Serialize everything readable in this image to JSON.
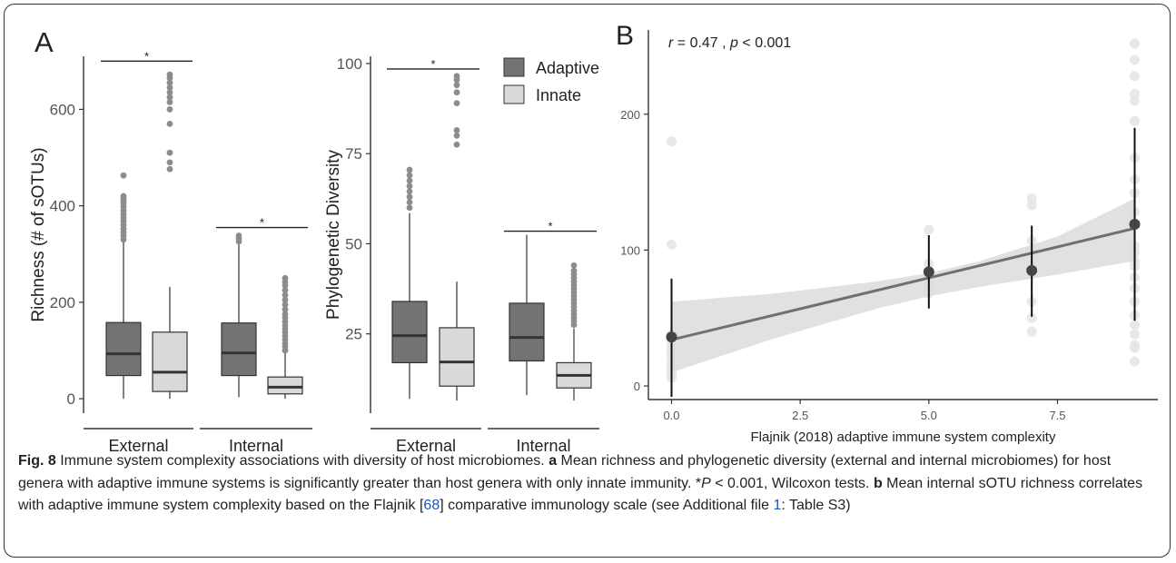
{
  "panels": {
    "a_letter": "A",
    "b_letter": "B"
  },
  "legend": {
    "adaptive": "Adaptive",
    "innate": "Innate"
  },
  "colors": {
    "adaptive": "#737373",
    "innate": "#d9d9d9",
    "outlier": "#8c8c8c",
    "regression_line": "#707070",
    "ci_band": "#dcdcdc",
    "bg_points": "#e6e6e6",
    "mean_points": "#444444"
  },
  "caption": {
    "fig_label": "Fig. 8",
    "title": " Immune system complexity associations with diversity of host microbiomes.",
    "a_label": "a",
    "a_text": " Mean richness and phylogenetic diversity (external and internal microbiomes) for host genera with adaptive immune systems is significantly greater than host genera with only innate immunity. *",
    "p_symbol": "P",
    "a_text2": " < 0.001, Wilcoxon tests.",
    "b_label": "b",
    "b_text1": " Mean internal sOTU richness correlates with adaptive immune system complexity based on the Flajnik [",
    "ref68": "68",
    "b_text2": "] comparative immunology scale (see Additional file ",
    "ref1": "1",
    "b_text3": ": Table S3)"
  },
  "chart_data": [
    {
      "type": "box",
      "id": "richness",
      "ylabel": "Richness (# of sOTUs)",
      "ylim": [
        -30,
        710
      ],
      "yticks": [
        0,
        200,
        400,
        600
      ],
      "facets": [
        "External",
        "Internal"
      ],
      "groups": [
        "Adaptive",
        "Innate"
      ],
      "boxes": [
        {
          "facet": "External",
          "group": "Adaptive",
          "whisker_low": 0,
          "q1": 48,
          "median": 93,
          "q3": 158,
          "whisker_high": 325,
          "outliers": [
            330,
            338,
            345,
            352,
            360,
            368,
            375,
            382,
            390,
            398,
            405,
            410,
            415,
            420,
            463
          ]
        },
        {
          "facet": "External",
          "group": "Innate",
          "whisker_low": 0,
          "q1": 15,
          "median": 55,
          "q3": 138,
          "whisker_high": 232,
          "outliers": [
            476,
            490,
            510,
            570,
            600,
            615,
            625,
            635,
            645,
            655,
            665,
            672
          ]
        },
        {
          "facet": "Internal",
          "group": "Adaptive",
          "whisker_low": 3,
          "q1": 48,
          "median": 95,
          "q3": 157,
          "whisker_high": 322,
          "outliers": [
            326,
            332,
            338
          ]
        },
        {
          "facet": "Internal",
          "group": "Innate",
          "whisker_low": 0,
          "q1": 10,
          "median": 24,
          "q3": 45,
          "whisker_high": 95,
          "outliers": [
            100,
            108,
            115,
            122,
            130,
            138,
            145,
            152,
            160,
            168,
            175,
            185,
            195,
            205,
            215,
            225,
            235,
            242,
            250
          ]
        }
      ],
      "significance": [
        {
          "facet": "External",
          "y": 700,
          "label": "*"
        },
        {
          "facet": "Internal",
          "y": 355,
          "label": "*"
        }
      ]
    },
    {
      "type": "box",
      "id": "phylogenetic",
      "ylabel": "Phylogenetic Diversity",
      "ylim": [
        3,
        102
      ],
      "yticks": [
        25,
        50,
        75,
        100
      ],
      "facets": [
        "External",
        "Internal"
      ],
      "groups": [
        "Adaptive",
        "Innate"
      ],
      "boxes": [
        {
          "facet": "External",
          "group": "Adaptive",
          "whisker_low": 7,
          "q1": 17,
          "median": 24.5,
          "q3": 34,
          "whisker_high": 58.5,
          "outliers": [
            60,
            61.5,
            63,
            64.5,
            66,
            67.5,
            69,
            70.5
          ]
        },
        {
          "facet": "External",
          "group": "Innate",
          "whisker_low": 6.5,
          "q1": 10.5,
          "median": 17.2,
          "q3": 26.7,
          "whisker_high": 39.5,
          "outliers": [
            77.5,
            80,
            81.5,
            89,
            92,
            94,
            95.5,
            96.5
          ]
        },
        {
          "facet": "Internal",
          "group": "Adaptive",
          "whisker_low": 8,
          "q1": 17.5,
          "median": 24,
          "q3": 33.5,
          "whisker_high": 52.5,
          "outliers": []
        },
        {
          "facet": "Internal",
          "group": "Innate",
          "whisker_low": 6.5,
          "q1": 10,
          "median": 13.5,
          "q3": 17,
          "whisker_high": 26.5,
          "outliers": [
            27.5,
            28.5,
            29.5,
            30.5,
            31.5,
            32.5,
            33.5,
            34.5,
            35.5,
            36.5,
            37.5,
            38.5,
            39.5,
            40.5,
            41.5,
            42.5,
            44
          ]
        }
      ],
      "significance": [
        {
          "facet": "External",
          "y": 98.5,
          "label": "*"
        },
        {
          "facet": "Internal",
          "y": 53.5,
          "label": "*"
        }
      ]
    },
    {
      "type": "scatter",
      "id": "correlation",
      "annotation_r": "r",
      "annotation_mid": " = 0.47 , ",
      "annotation_p": "p",
      "annotation_end": " < 0.001",
      "xlabel": "Flajnik (2018) adaptive immune system complexity",
      "ylabel": "",
      "xlim": [
        -0.45,
        9.45
      ],
      "ylim": [
        -10,
        262
      ],
      "xticks": [
        "0.0",
        "2.5",
        "5.0",
        "7.5"
      ],
      "xtick_values": [
        0,
        2.5,
        5,
        7.5
      ],
      "yticks": [
        0,
        100,
        200
      ],
      "background_points": [
        {
          "x": 0,
          "ys": [
            180,
            104,
            38,
            32,
            28,
            25,
            22,
            18,
            15,
            12,
            10,
            8,
            6
          ]
        },
        {
          "x": 5,
          "ys": [
            115,
            90,
            82,
            78,
            75,
            70,
            68
          ]
        },
        {
          "x": 7,
          "ys": [
            138,
            133,
            107,
            100,
            88,
            62,
            50,
            40
          ]
        },
        {
          "x": 9,
          "ys": [
            252,
            240,
            228,
            215,
            210,
            195,
            168,
            152,
            142,
            128,
            120,
            103,
            98,
            92,
            88,
            80,
            72,
            62,
            52,
            45,
            38,
            30,
            28,
            18
          ]
        }
      ],
      "means": [
        {
          "x": 0,
          "y": 36,
          "lo": -8,
          "hi": 79
        },
        {
          "x": 5,
          "y": 84,
          "lo": 57,
          "hi": 111
        },
        {
          "x": 7,
          "y": 85,
          "lo": 51,
          "hi": 118
        },
        {
          "x": 9,
          "y": 119,
          "lo": 48,
          "hi": 190
        }
      ],
      "fit": {
        "x0": 0,
        "y0": 34,
        "x1": 9,
        "y1": 116
      },
      "ci": [
        {
          "x": 0,
          "lo": 10,
          "hi": 62
        },
        {
          "x": 2,
          "lo": 35,
          "hi": 68
        },
        {
          "x": 4,
          "lo": 57,
          "hi": 77
        },
        {
          "x": 5,
          "lo": 66,
          "hi": 83
        },
        {
          "x": 6,
          "lo": 73,
          "hi": 92
        },
        {
          "x": 7.5,
          "lo": 82,
          "hi": 110
        },
        {
          "x": 9,
          "lo": 92,
          "hi": 138
        }
      ]
    }
  ]
}
